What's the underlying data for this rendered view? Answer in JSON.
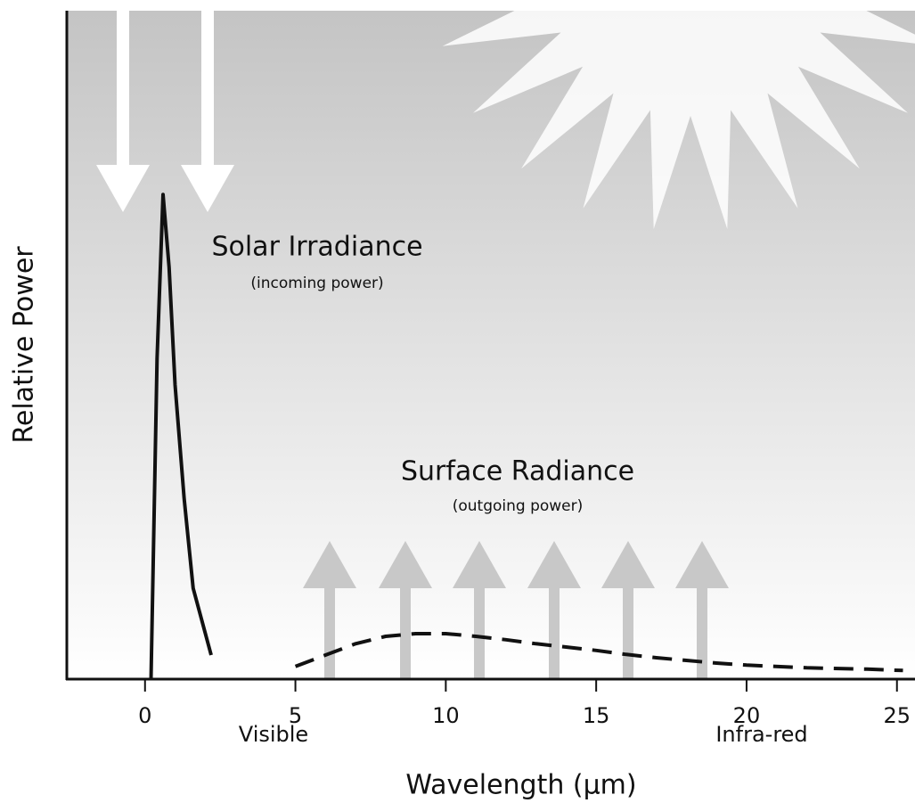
{
  "chart_data": {
    "type": "line",
    "x_label": "Relative Power",
    "y_label": "Relative Power",
    "xaxis_title": "Wavelength (μm)",
    "region_labels": [
      "Visible",
      "Infra-red"
    ],
    "annotations": [
      {
        "title": "Solar Irradiance",
        "subtitle": "(incoming power)"
      },
      {
        "title": "Surface Radiance",
        "subtitle": "(outgoing power)"
      }
    ],
    "series": [
      {
        "color": "#111111",
        "style": "solid",
        "x": [
          0.2,
          0.4,
          0.6,
          0.8,
          1.0,
          1.3,
          1.6,
          2.2
        ],
        "values": [
          0,
          48,
          72.5,
          61.6,
          44,
          27,
          13.6,
          3.6
        ]
      },
      {
        "color": "#111111",
        "style": "dashed",
        "x": [
          5,
          6,
          7,
          8,
          9,
          10,
          11,
          12,
          13,
          14,
          15,
          16,
          17,
          18,
          19,
          20,
          22,
          24,
          25.2
        ],
        "values": [
          1.9,
          3.6,
          5.3,
          6.4,
          6.8,
          6.8,
          6.4,
          5.9,
          5.3,
          4.8,
          4.3,
          3.7,
          3.2,
          2.8,
          2.4,
          2.1,
          1.7,
          1.5,
          1.3
        ]
      }
    ],
    "xlim": [
      -2.6,
      25.6
    ],
    "xticks": [
      0,
      5,
      10,
      15,
      20,
      25
    ],
    "ylim": [
      0,
      100
    ]
  }
}
